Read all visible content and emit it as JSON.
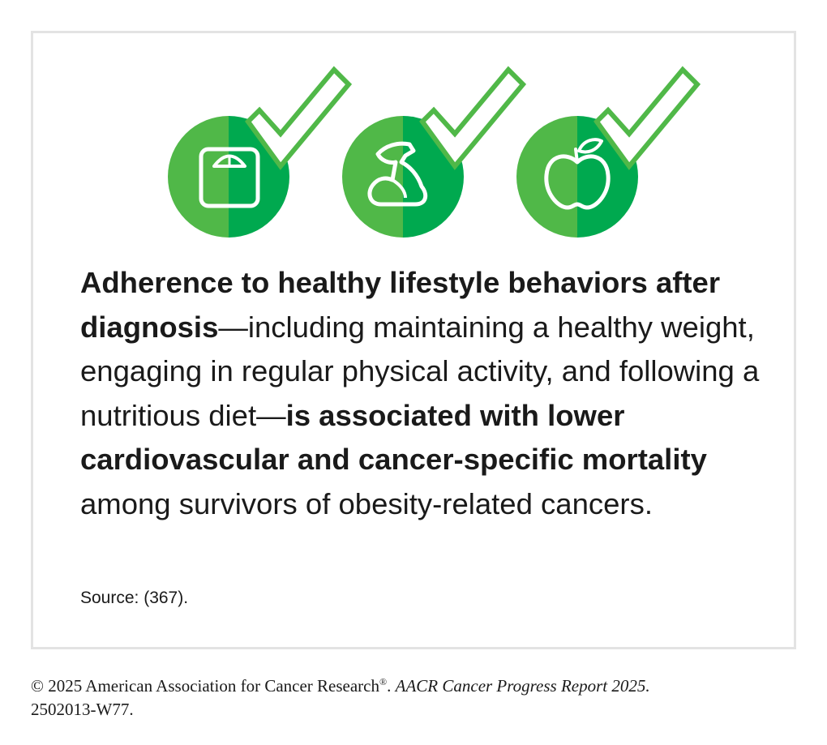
{
  "icons": [
    {
      "name": "scale-icon",
      "meaning": "healthy weight"
    },
    {
      "name": "flexed-arm-icon",
      "meaning": "physical activity"
    },
    {
      "name": "apple-icon",
      "meaning": "nutritious diet"
    }
  ],
  "colors": {
    "green_light": "#50b848",
    "green_dark": "#00a94f",
    "check_outline": "#50b848",
    "frame_border": "#e3e3e3"
  },
  "statement": {
    "bold_1": "Adherence to healthy lifestyle behaviors after diagnosis",
    "text_1": "—including maintaining a healthy weight, engaging in regular physical activity, and following a nutritious diet—",
    "bold_2": "is associated with lower cardiovascular and cancer-specific mortality",
    "text_2": " among survivors of obesity-related cancers."
  },
  "source": "Source: (367).",
  "footer": {
    "copyright": "© 2025 American Association for Cancer Research",
    "reg_mark": "®",
    "separator": ". ",
    "report": "AACR Cancer Progress Report 2025.",
    "code": "2502013-W77."
  }
}
